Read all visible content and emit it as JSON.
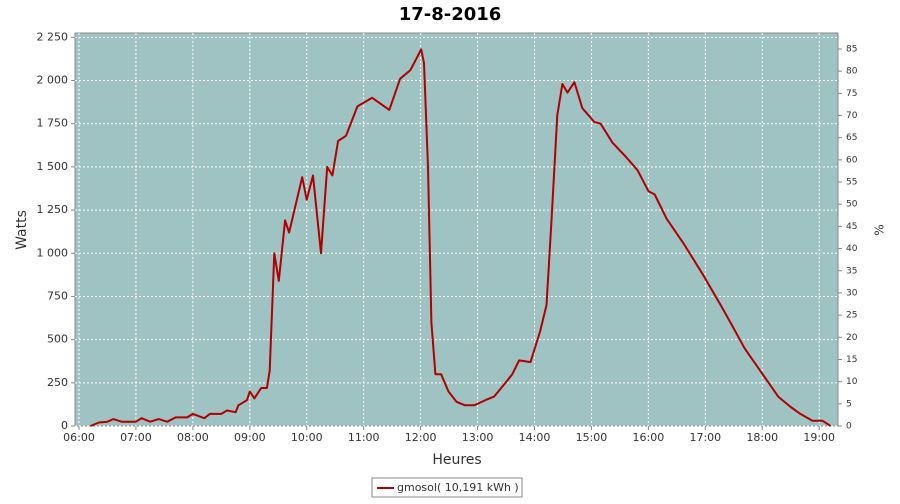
{
  "chart_data": {
    "type": "line",
    "title": "17-8-2016",
    "xlabel": "Heures",
    "ylabel": "Watts",
    "y2label": "%",
    "xlim": [
      5.93,
      19.33
    ],
    "xticks": [
      {
        "value": 6,
        "label": "06:00"
      },
      {
        "value": 7,
        "label": "07:00"
      },
      {
        "value": 8,
        "label": "08:00"
      },
      {
        "value": 9,
        "label": "09:00"
      },
      {
        "value": 10,
        "label": "10:00"
      },
      {
        "value": 11,
        "label": "11:00"
      },
      {
        "value": 12,
        "label": "12:00"
      },
      {
        "value": 13,
        "label": "13:00"
      },
      {
        "value": 14,
        "label": "14:00"
      },
      {
        "value": 15,
        "label": "15:00"
      },
      {
        "value": 16,
        "label": "16:00"
      },
      {
        "value": 17,
        "label": "17:00"
      },
      {
        "value": 18,
        "label": "18:00"
      },
      {
        "value": 19,
        "label": "19:00"
      }
    ],
    "ylim": [
      0,
      2275
    ],
    "yticks": [
      0,
      250,
      500,
      750,
      {
        "value": 1000,
        "label": "1 000"
      },
      {
        "value": 1250,
        "label": "1 250"
      },
      {
        "value": 1500,
        "label": "1 500"
      },
      {
        "value": 1750,
        "label": "1 750"
      },
      {
        "value": 2000,
        "label": "2 000"
      },
      {
        "value": 2250,
        "label": "2 250"
      }
    ],
    "y2lim": [
      0,
      88.6
    ],
    "y2ticks": [
      0,
      5,
      10,
      15,
      20,
      25,
      30,
      35,
      40,
      45,
      50,
      55,
      60,
      65,
      70,
      75,
      80,
      85
    ],
    "grid": true,
    "plot_background": "#9fc3c3",
    "x": [
      6.2,
      6.35,
      6.5,
      6.6,
      6.75,
      7.0,
      7.1,
      7.25,
      7.4,
      7.55,
      7.7,
      7.9,
      8.0,
      8.2,
      8.3,
      8.5,
      8.6,
      8.75,
      8.8,
      8.95,
      9.0,
      9.08,
      9.2,
      9.3,
      9.35,
      9.43,
      9.51,
      9.62,
      9.69,
      9.92,
      10.0,
      10.11,
      10.25,
      10.36,
      10.45,
      10.55,
      10.69,
      10.89,
      11.15,
      11.45,
      11.64,
      11.82,
      12.01,
      12.06,
      12.13,
      12.19,
      12.26,
      12.36,
      12.49,
      12.63,
      12.78,
      12.94,
      13.14,
      13.29,
      13.49,
      13.61,
      13.73,
      13.93,
      14.1,
      14.21,
      14.3,
      14.4,
      14.49,
      14.58,
      14.7,
      14.84,
      15.05,
      15.16,
      15.37,
      15.6,
      15.81,
      16.0,
      16.11,
      16.32,
      16.63,
      16.97,
      17.27,
      17.44,
      17.69,
      17.88,
      18.09,
      18.28,
      18.5,
      18.67,
      18.88,
      19.06,
      19.2
    ],
    "series": [
      {
        "name": "gmosol( 10,191 kWh )",
        "color": "#b00000",
        "values": [
          0,
          20,
          25,
          40,
          25,
          25,
          45,
          25,
          40,
          25,
          50,
          50,
          70,
          45,
          70,
          70,
          90,
          80,
          120,
          150,
          200,
          160,
          220,
          220,
          320,
          1000,
          840,
          1190,
          1120,
          1440,
          1310,
          1450,
          1000,
          1500,
          1450,
          1650,
          1680,
          1850,
          1900,
          1830,
          2010,
          2060,
          2180,
          2100,
          1500,
          600,
          300,
          300,
          200,
          140,
          120,
          120,
          150,
          170,
          250,
          300,
          380,
          370,
          550,
          700,
          1200,
          1800,
          1980,
          1930,
          1990,
          1840,
          1760,
          1750,
          1640,
          1560,
          1480,
          1360,
          1340,
          1200,
          1050,
          870,
          700,
          600,
          450,
          360,
          260,
          170,
          110,
          70,
          30,
          30,
          0
        ]
      }
    ]
  }
}
